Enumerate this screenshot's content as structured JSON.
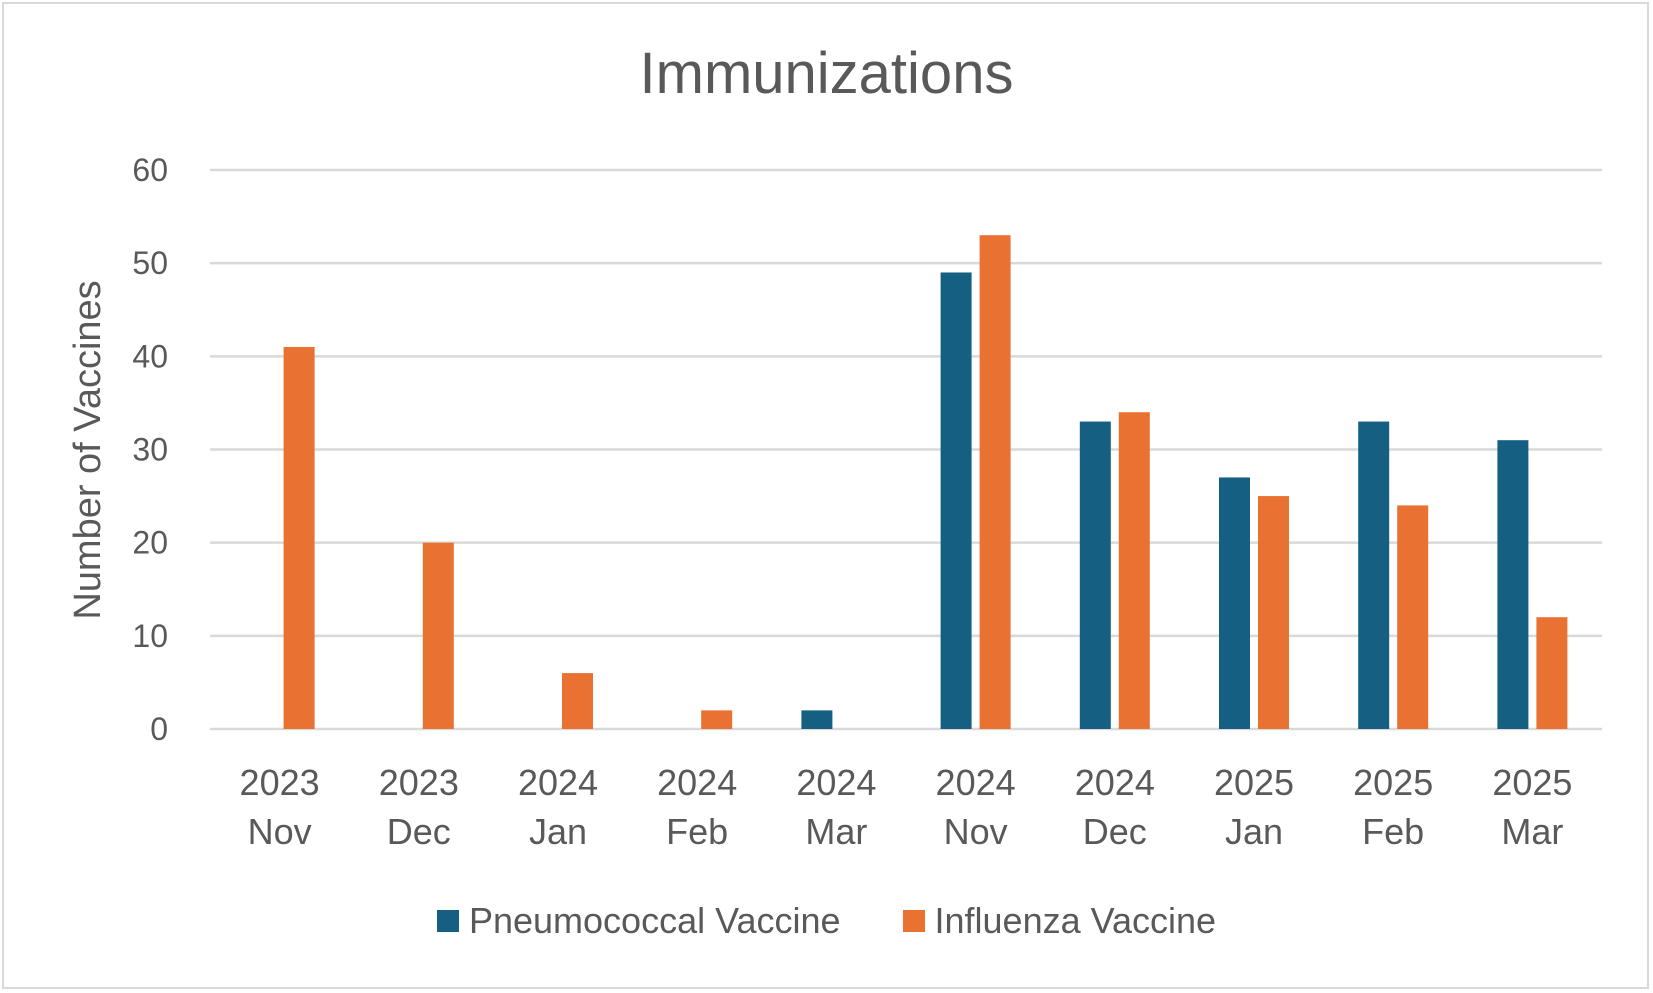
{
  "chart_data": {
    "type": "bar",
    "title": "Immunizations",
    "ylabel": "Number of Vaccines",
    "xlabel": "",
    "ylim": [
      0,
      60
    ],
    "yticks": [
      0,
      10,
      20,
      30,
      40,
      50,
      60
    ],
    "grid": true,
    "legend_position": "bottom",
    "categories": [
      [
        "2023",
        "Nov"
      ],
      [
        "2023",
        "Dec"
      ],
      [
        "2024",
        "Jan"
      ],
      [
        "2024",
        "Feb"
      ],
      [
        "2024",
        "Mar"
      ],
      [
        "2024",
        "Nov"
      ],
      [
        "2024",
        "Dec"
      ],
      [
        "2025",
        "Jan"
      ],
      [
        "2025",
        "Feb"
      ],
      [
        "2025",
        "Mar"
      ]
    ],
    "series": [
      {
        "name": "Pneumococcal Vaccine",
        "color": "#156082",
        "values": [
          0,
          0,
          0,
          0,
          2,
          49,
          33,
          27,
          33,
          31
        ]
      },
      {
        "name": "Influenza Vaccine",
        "color": "#e97132",
        "values": [
          41,
          20,
          6,
          2,
          0,
          53,
          34,
          25,
          24,
          12
        ]
      }
    ]
  }
}
